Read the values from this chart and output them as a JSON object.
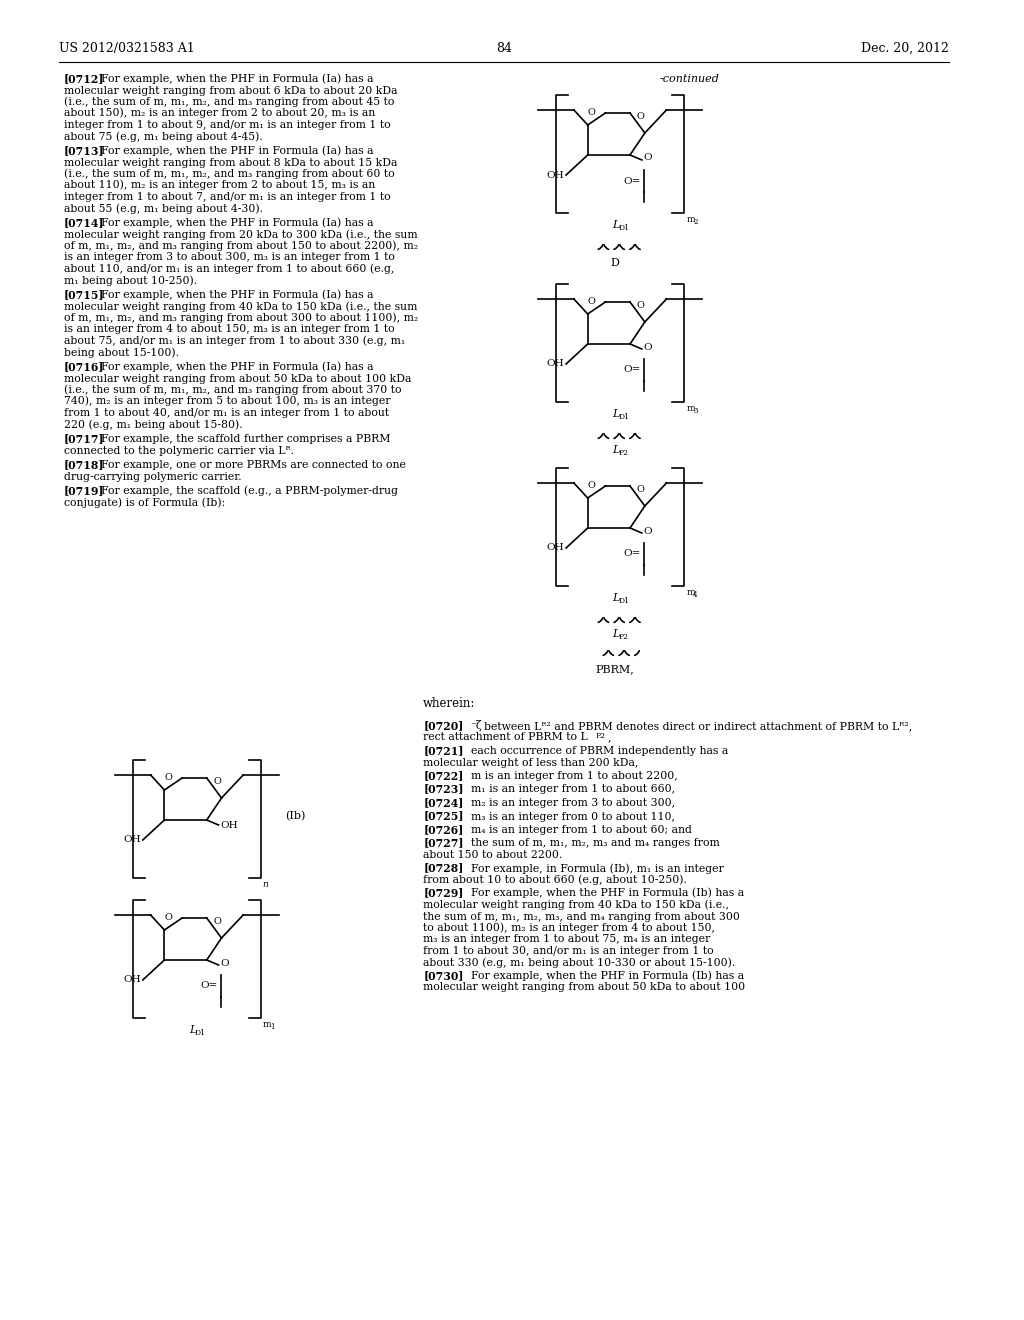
{
  "header_left": "US 2012/0321583 A1",
  "header_right": "Dec. 20, 2012",
  "page_number": "84",
  "background_color": "#ffffff",
  "text_color": "#000000",
  "left_column_text": [
    {
      "tag": "[0712]",
      "text": "For example, when the PHF in Formula (Ia) has a molecular weight ranging from about 6 kDa to about 20 kDa (i.e., the sum of m, m₁, m₂, and m₃ ranging from about 45 to about 150), m₂ is an integer from 2 to about 20, m₃ is an integer from 1 to about 9, and/or m₁ is an integer from 1 to about 75 (e.g, m₁ being about 4-45)."
    },
    {
      "tag": "[0713]",
      "text": "For example, when the PHF in Formula (Ia) has a molecular weight ranging from about 8 kDa to about 15 kDa (i.e., the sum of m, m₁, m₂, and m₃ ranging from about 60 to about 110), m₂ is an integer from 2 to about 15, m₃ is an integer from 1 to about 7, and/or m₁ is an integer from 1 to about 55 (e.g, m₁ being about 4-30)."
    },
    {
      "tag": "[0714]",
      "text": "For example, when the PHF in Formula (Ia) has a molecular weight ranging from 20 kDa to 300 kDa (i.e., the sum of m, m₁, m₂, and m₃ ranging from about 150 to about 2200), m₂ is an integer from 3 to about 300, m₃ is an integer from 1 to about 110, and/or m₁ is an integer from 1 to about 660 (e.g, m₁ being about 10-250)."
    },
    {
      "tag": "[0715]",
      "text": "For example, when the PHF in Formula (Ia) has a molecular weight ranging from 40 kDa to 150 kDa (i.e., the sum of m, m₁, m₂, and m₃ ranging from about 300 to about 1100), m₂ is an integer from 4 to about 150, m₃ is an integer from 1 to about 75, and/or m₁ is an integer from 1 to about 330 (e.g, m₁ being about 15-100)."
    },
    {
      "tag": "[0716]",
      "text": "For example, when the PHF in Formula (Ia) has a molecular weight ranging from about 50 kDa to about 100 kDa (i.e., the sum of m, m₁, m₂, and m₃ ranging from about 370 to 740), m₂ is an integer from 5 to about 100, m₃ is an integer from 1 to about 40, and/or m₁ is an integer from 1 to about 220 (e.g, m₁ being about 15-80)."
    },
    {
      "tag": "[0717]",
      "text": "For example, the scaffold further comprises a PBRM connected to the polymeric carrier via Lᴿ."
    },
    {
      "tag": "[0718]",
      "text": "For example, one or more PBRMs are connected to one drug-carrying polymeric carrier."
    },
    {
      "tag": "[0719]",
      "text": "For example, the scaffold (e.g., a PBRM-polymer-drug conjugate) is of Formula (Ib):"
    }
  ],
  "right_column_paragraphs": [
    {
      "tag": "[0720]",
      "text": "between Lᴿ² and PBRM denotes direct or indirect attachment of PBRM to Lᴿ²,"
    },
    {
      "tag": "[0721]",
      "text": "each occurrence of PBRM independently has a molecular weight of less than 200 kDa,"
    },
    {
      "tag": "[0722]",
      "text": "m is an integer from 1 to about 2200,"
    },
    {
      "tag": "[0723]",
      "text": "m₁ is an integer from 1 to about 660,"
    },
    {
      "tag": "[0724]",
      "text": "m₂ is an integer from 3 to about 300,"
    },
    {
      "tag": "[0725]",
      "text": "m₃ is an integer from 0 to about 110,"
    },
    {
      "tag": "[0726]",
      "text": "m₄ is an integer from 1 to about 60; and"
    },
    {
      "tag": "[0727]",
      "text": "the sum of m, m₁, m₂, m₃ and m₄ ranges from about 150 to about 2200."
    },
    {
      "tag": "[0728]",
      "text": "For example, in Formula (Ib), m₁ is an integer from about 10 to about 660 (e.g, about 10-250)."
    },
    {
      "tag": "[0729]",
      "text": "For example, when the PHF in Formula (Ib) has a molecular weight ranging from 40 kDa to 150 kDa (i.e., the sum of m, m₁, m₂, m₃, and m₄ ranging from about 300 to about 1100), m₂ is an integer from 4 to about 150, m₃ is an integer from 1 to about 75, m₄ is an integer from 1 to about 30, and/or m₁ is an integer from 1 to about 330 (e.g, m₁ being about 10-330 or about 15-100)."
    },
    {
      "tag": "[0730]",
      "text": "For example, when the PHF in Formula (Ib) has a molecular weight ranging from about 50 kDa to about 100"
    }
  ]
}
